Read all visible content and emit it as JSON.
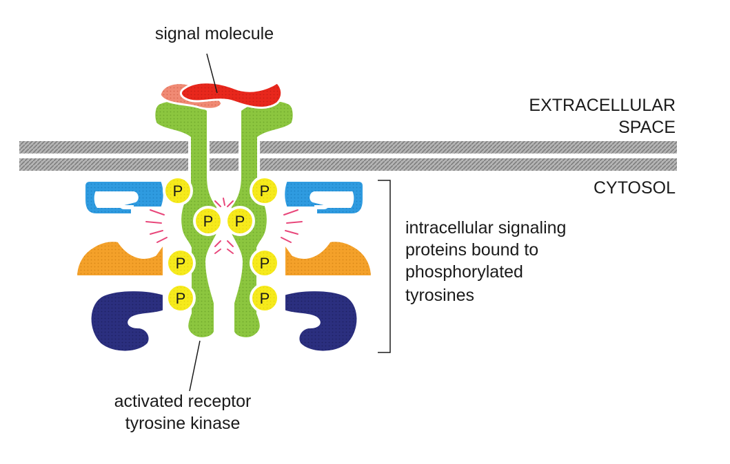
{
  "labels": {
    "signal_molecule": "signal molecule",
    "extracellular_line1": "EXTRACELLULAR",
    "extracellular_line2": "SPACE",
    "cytosol": "CYTOSOL",
    "signaling_line1": "intracellular signaling",
    "signaling_line2": "proteins bound to",
    "signaling_line3": "phosphorylated",
    "signaling_line4": "tyrosines",
    "receptor_line1": "activated receptor",
    "receptor_line2": "tyrosine kinase"
  },
  "phospho_label": "P",
  "colors": {
    "membrane": "#9a9a9a",
    "receptor": "#8cc63f",
    "signal_red": "#e8271c",
    "signal_pink": "#f08a74",
    "blue_protein": "#2f9be0",
    "orange_protein": "#f4a12a",
    "navy_protein": "#2b2f7f",
    "phosphate": "#f6ea1c",
    "activity_lines": "#e8467a"
  },
  "icons": [
    "signal-molecule-shape",
    "receptor-shape",
    "phosphate-circle",
    "bracket-icon"
  ]
}
